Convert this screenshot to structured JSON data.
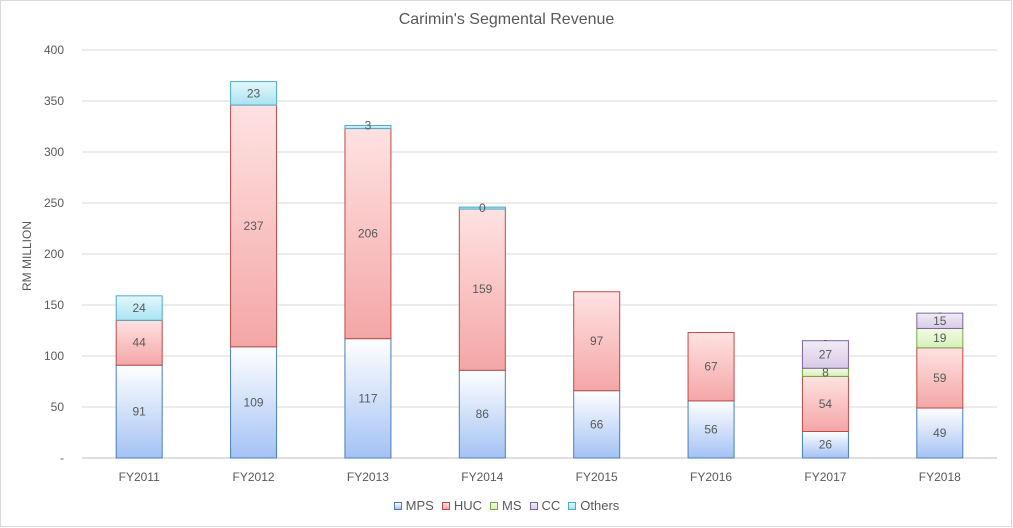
{
  "chart_data": {
    "type": "bar",
    "stacked": true,
    "title": "Carimin's Segmental Revenue",
    "xlabel": "",
    "ylabel": "RM MILLION",
    "ylim": [
      0,
      400
    ],
    "yticks": [
      0,
      50,
      100,
      150,
      200,
      250,
      300,
      350,
      400
    ],
    "ytick_labels": [
      "-",
      "50",
      "100",
      "150",
      "200",
      "250",
      "300",
      "350",
      "400"
    ],
    "grid": true,
    "legend_position": "bottom",
    "categories": [
      "FY2011",
      "FY2012",
      "FY2013",
      "FY2014",
      "FY2015",
      "FY2016",
      "FY2017",
      "FY2018"
    ],
    "series": [
      {
        "name": "MPS",
        "values": [
          91,
          109,
          117,
          86,
          66,
          56,
          26,
          49
        ],
        "labels": [
          "91",
          "109",
          "117",
          "86",
          "66",
          "56",
          "26",
          "49"
        ],
        "fill_top": "#ffffff",
        "fill_bottom": "#a4c2f4",
        "stroke": "#4a7ebb"
      },
      {
        "name": "HUC",
        "values": [
          44,
          237,
          206,
          159,
          97,
          67,
          54,
          59
        ],
        "labels": [
          "44",
          "237",
          "206",
          "159",
          "97",
          "67",
          "54",
          "59"
        ],
        "fill_top": "#ffe2e2",
        "fill_bottom": "#f4a6a6",
        "stroke": "#be4b48"
      },
      {
        "name": "MS",
        "values": [
          0,
          0,
          0,
          0,
          0,
          0,
          8,
          19
        ],
        "labels": [
          "",
          "",
          "",
          "",
          "",
          "",
          "8",
          "19"
        ],
        "fill_top": "#f3fbe8",
        "fill_bottom": "#d6efb8",
        "stroke": "#77a548"
      },
      {
        "name": "CC",
        "values": [
          0,
          0,
          0,
          0,
          0,
          0,
          27,
          15
        ],
        "labels": [
          "",
          "",
          "",
          "",
          "",
          "",
          "27",
          "15"
        ],
        "fill_top": "#f1ecf7",
        "fill_bottom": "#d8cbe7",
        "stroke": "#8064a2"
      },
      {
        "name": "Others",
        "values": [
          24,
          23,
          3,
          0,
          0,
          0,
          0,
          0
        ],
        "labels": [
          "24",
          "23",
          "3",
          "0",
          "",
          "",
          "-",
          "-"
        ],
        "fill_top": "#e4f7fc",
        "fill_bottom": "#a9e3f2",
        "stroke": "#4bacc6"
      }
    ]
  }
}
